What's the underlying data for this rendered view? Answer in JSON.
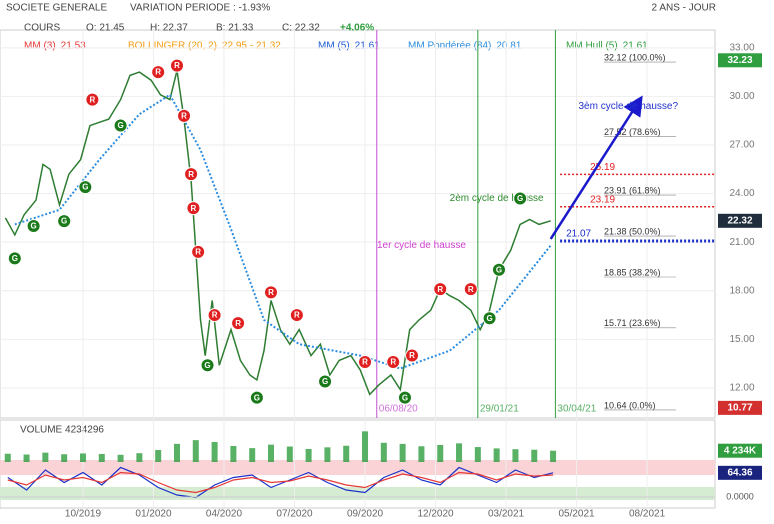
{
  "chart_data": {
    "type": "line",
    "title": "SOCIETE GENERALE",
    "subtitle": "VARIATION PERIODE : -1.93%",
    "period": "2 ANS - JOUR",
    "quote_label": "COURS",
    "ohlc": [
      "O: 21.45",
      "H: 22.37",
      "B: 21.33",
      "C: 22.32"
    ],
    "change": "+4.06%",
    "indicators": [
      {
        "name": "MM (3)",
        "value": "21.53",
        "color": "#e53935"
      },
      {
        "name": "BOLLINGER (20, 2)",
        "value": "22.95 - 21.32",
        "color": "#f39c12"
      },
      {
        "name": "MM (5)",
        "value": "21.61",
        "color": "#1e5bd6"
      },
      {
        "name": "MM Pondérée (84)",
        "value": "20.81",
        "color": "#2b8de0"
      },
      {
        "name": "MM Hull (5)",
        "value": "21.61",
        "color": "#2e9e3e"
      }
    ],
    "series": [
      {
        "name": "COURS",
        "color": "#2e7d32",
        "x": [
          -3.3,
          -2.9,
          -2.5,
          -2.0,
          -1.7,
          -1.4,
          -1.0,
          -0.6,
          -0.1,
          0.3,
          0.7,
          1.1,
          1.6,
          2.0,
          2.4,
          2.9,
          3.3,
          3.7,
          4.0,
          4.3,
          4.6,
          4.8,
          5.0,
          5.2,
          5.5,
          5.8,
          6.3,
          6.7,
          7.1,
          7.4,
          7.7,
          8.0,
          8.4,
          8.8,
          9.2,
          9.7,
          10.1,
          10.5,
          10.9,
          11.4,
          11.8,
          12.2,
          12.6,
          13.1,
          13.5,
          13.9,
          14.3,
          14.8,
          15.2,
          15.6,
          16.0,
          16.5,
          16.9,
          17.3,
          17.7,
          18.2,
          18.6,
          19.0,
          19.4,
          19.9
        ],
        "values": [
          22.5,
          21.45,
          22.7,
          23.6,
          25.8,
          25.5,
          23.3,
          25.2,
          26.1,
          28.2,
          28.4,
          28.6,
          29.8,
          31.3,
          31.5,
          31.0,
          30.1,
          29.8,
          31.6,
          28.6,
          24.8,
          20.5,
          16.2,
          14.0,
          17.4,
          13.4,
          15.6,
          13.7,
          12.8,
          12.5,
          14.3,
          17.4,
          15.6,
          14.7,
          15.6,
          14.0,
          14.7,
          12.8,
          13.7,
          14.0,
          13.1,
          11.6,
          12.2,
          12.8,
          11.9,
          15.6,
          16.2,
          16.8,
          18.1,
          17.7,
          17.4,
          16.8,
          15.6,
          16.8,
          19.3,
          20.5,
          22.1,
          22.4,
          22.1,
          22.32
        ]
      },
      {
        "name": "MM Pondérée (84)",
        "color": "#2b8de0",
        "x": [
          -2.9,
          -1.0,
          0.7,
          2.4,
          3.7,
          5.0,
          6.3,
          7.7,
          9.2,
          11.8,
          13.5,
          15.6,
          17.7,
          19.9
        ],
        "values": [
          22.1,
          23.0,
          26.1,
          28.9,
          30.1,
          26.7,
          21.8,
          16.2,
          14.7,
          14.0,
          13.2,
          14.3,
          16.8,
          20.8
        ]
      }
    ],
    "xlim": [
      -3.53,
      26.89
    ],
    "xticks": [
      {
        "value": 0,
        "label": "10/2019"
      },
      {
        "value": 3,
        "label": "01/2020"
      },
      {
        "value": 6,
        "label": "04/2020"
      },
      {
        "value": 9,
        "label": "07/2020"
      },
      {
        "value": 12,
        "label": "09/2020"
      },
      {
        "value": 15,
        "label": "12/2020"
      },
      {
        "value": 18,
        "label": "03/2021"
      },
      {
        "value": 21,
        "label": "05/2021"
      },
      {
        "value": 24,
        "label": "08/2021"
      }
    ],
    "ylim": [
      10.33,
      34.1
    ],
    "yticks": [
      {
        "value": 12,
        "label": "12.00"
      },
      {
        "value": 15,
        "label": "15.00"
      },
      {
        "value": 18,
        "label": "18.00"
      },
      {
        "value": 21,
        "label": "21.00"
      },
      {
        "value": 24,
        "label": "24.00"
      },
      {
        "value": 27,
        "label": "27.00"
      },
      {
        "value": 30,
        "label": "30.00"
      },
      {
        "value": 33,
        "label": "33.00"
      }
    ],
    "grid": true,
    "price_tags": [
      {
        "value": 32.23,
        "label": "32.23",
        "color": "#2e9e3e"
      },
      {
        "value": 22.32,
        "label": "22.32",
        "color": "#1f2d3d"
      },
      {
        "value": 10.77,
        "label": "10.77",
        "color": "#d32f2f"
      }
    ],
    "fibonacci": [
      {
        "value": 32.12,
        "label": "32.12  (100.0%)"
      },
      {
        "value": 27.52,
        "label": "27.52  (78.6%)"
      },
      {
        "value": 23.91,
        "label": "23.91  (61.8%)"
      },
      {
        "value": 21.38,
        "label": "21.38  (50.0%)"
      },
      {
        "value": 18.85,
        "label": "18.85  (38.2%)"
      },
      {
        "value": 15.71,
        "label": "15.71  (23.6%)"
      },
      {
        "value": 10.64,
        "label": "10.64  (0.0%)"
      }
    ],
    "levels": [
      {
        "value": 25.19,
        "label": "25.19",
        "color": "#e02020",
        "from": 20.3
      },
      {
        "value": 23.19,
        "label": "23.19",
        "color": "#e02020",
        "from": 20.3
      },
      {
        "value": 21.07,
        "label": "21.07",
        "color": "#1a2fc9",
        "from": 20.3
      }
    ],
    "vlines": [
      {
        "x": 12.5,
        "label": "06/08/20",
        "color": "#c050d0"
      },
      {
        "x": 16.8,
        "label": "29/01/21",
        "color": "#2e9e3e"
      },
      {
        "x": 20.1,
        "label": "30/04/21",
        "color": "#2e9e3e"
      }
    ],
    "annotations": [
      {
        "text": "3èm cycle de hausse?",
        "x": 23.2,
        "y": 29.4,
        "color": "#2233cc"
      },
      {
        "text": "2èm cycle de hausse",
        "x": 17.6,
        "y": 23.7,
        "color": "#2e8b2e"
      },
      {
        "text": "1er cycle de hausse",
        "x": 14.4,
        "y": 20.8,
        "color": "#d040d0"
      }
    ],
    "arrow": {
      "x": [
        19.9,
        23.7
      ],
      "y": [
        21.2,
        29.8
      ],
      "color": "#1a1acc"
    },
    "signals": [
      {
        "label": "G",
        "x": -2.9,
        "y": 20.0
      },
      {
        "label": "G",
        "x": -2.1,
        "y": 22.0
      },
      {
        "label": "G",
        "x": -0.8,
        "y": 22.3
      },
      {
        "label": "G",
        "x": 0.1,
        "y": 24.4
      },
      {
        "label": "G",
        "x": 1.6,
        "y": 28.2
      },
      {
        "label": "R",
        "x": 0.4,
        "y": 29.8
      },
      {
        "label": "R",
        "x": 3.2,
        "y": 31.5
      },
      {
        "label": "R",
        "x": 4.0,
        "y": 31.9
      },
      {
        "label": "R",
        "x": 4.3,
        "y": 28.8
      },
      {
        "label": "R",
        "x": 4.6,
        "y": 25.2
      },
      {
        "label": "R",
        "x": 4.7,
        "y": 23.1
      },
      {
        "label": "R",
        "x": 4.9,
        "y": 20.4
      },
      {
        "label": "R",
        "x": 5.6,
        "y": 16.5
      },
      {
        "label": "R",
        "x": 6.6,
        "y": 16.0
      },
      {
        "label": "R",
        "x": 8.0,
        "y": 17.9
      },
      {
        "label": "R",
        "x": 9.1,
        "y": 16.5
      },
      {
        "label": "R",
        "x": 12.0,
        "y": 13.6
      },
      {
        "label": "R",
        "x": 13.2,
        "y": 13.6
      },
      {
        "label": "R",
        "x": 14.0,
        "y": 14.0
      },
      {
        "label": "R",
        "x": 15.2,
        "y": 18.1
      },
      {
        "label": "R",
        "x": 16.5,
        "y": 18.1
      },
      {
        "label": "G",
        "x": 5.3,
        "y": 13.4
      },
      {
        "label": "G",
        "x": 7.4,
        "y": 11.4
      },
      {
        "label": "G",
        "x": 10.3,
        "y": 12.4
      },
      {
        "label": "G",
        "x": 13.7,
        "y": 11.4
      },
      {
        "label": "G",
        "x": 17.3,
        "y": 16.3
      },
      {
        "label": "G",
        "x": 17.7,
        "y": 19.3
      },
      {
        "label": "G",
        "x": 18.6,
        "y": 23.7
      }
    ],
    "volume": {
      "title": "VOLUME 4234296",
      "tag": "4 234K",
      "color": "#2e9e3e",
      "ylim": [
        0,
        12000000
      ],
      "x": [
        -3.2,
        -2.4,
        -1.6,
        -0.8,
        0,
        0.8,
        1.6,
        2.4,
        3.2,
        4,
        4.8,
        5.6,
        6.4,
        7.2,
        8,
        8.8,
        9.6,
        10.4,
        11.2,
        12,
        12.8,
        13.6,
        14.4,
        15.2,
        16,
        16.8,
        17.6,
        18.4,
        19.2,
        20.0
      ],
      "values": [
        3100000,
        2800000,
        3500000,
        2900000,
        3200000,
        3000000,
        2700000,
        3300000,
        4500000,
        6800000,
        8200000,
        7500000,
        6000000,
        5200000,
        6500000,
        5800000,
        4900000,
        5500000,
        6100000,
        11500000,
        7200000,
        6800000,
        5900000,
        6400000,
        7000000,
        5600000,
        5100000,
        4800000,
        4600000,
        4234296
      ]
    },
    "oscillator": {
      "tag": "64.36",
      "zero_label": "0.0000",
      "ylim": [
        0,
        100
      ],
      "x": [
        -3.2,
        -2.4,
        -1.6,
        -0.8,
        0,
        0.8,
        1.6,
        2.4,
        3.2,
        4,
        4.8,
        5.6,
        6.4,
        7.2,
        8,
        8.8,
        9.6,
        10.4,
        11.2,
        12,
        12.8,
        13.6,
        14.4,
        15.2,
        16,
        16.8,
        17.6,
        18.4,
        19.2,
        20.0
      ],
      "series": [
        {
          "color": "#1a2fc9",
          "values": [
            55,
            30,
            70,
            45,
            65,
            40,
            75,
            60,
            35,
            20,
            15,
            40,
            55,
            60,
            35,
            50,
            65,
            45,
            30,
            25,
            55,
            70,
            50,
            40,
            75,
            60,
            45,
            70,
            55,
            64.36
          ]
        },
        {
          "color": "#e53935",
          "values": [
            50,
            40,
            60,
            50,
            55,
            45,
            65,
            62,
            45,
            30,
            25,
            35,
            50,
            55,
            45,
            48,
            58,
            50,
            40,
            35,
            50,
            62,
            55,
            45,
            65,
            62,
            50,
            62,
            58,
            60
          ]
        }
      ]
    }
  }
}
